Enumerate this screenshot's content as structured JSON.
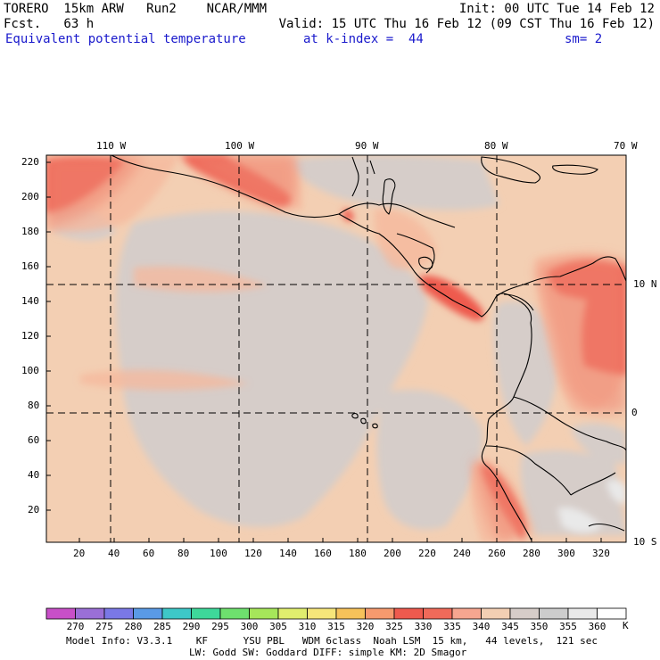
{
  "header": {
    "line1_left": "TORERO  15km ARW   Run2    NCAR/MMM",
    "line1_right": "Init: 00 UTC Tue 14 Feb 12",
    "line2_left": "Fcst.   63 h",
    "line2_right": "Valid: 15 UTC Thu 16 Feb 12 (09 CST Thu 16 Feb 12)",
    "field": "Equivalent potential temperature",
    "level": "at k-index =  44",
    "smooth": "sm= 2"
  },
  "map": {
    "lon_labels": [
      "110 W",
      "100 W",
      "90 W",
      "80 W",
      "70 W"
    ],
    "lat_labels": [
      "10 N",
      "0",
      "10 S"
    ],
    "y_ticks": [
      "220",
      "200",
      "180",
      "160",
      "140",
      "120",
      "100",
      "80",
      "60",
      "40",
      "20"
    ],
    "x_ticks": [
      "20",
      "40",
      "60",
      "80",
      "100",
      "120",
      "140",
      "160",
      "180",
      "200",
      "220",
      "240",
      "260",
      "280",
      "300",
      "320"
    ]
  },
  "colorbar": {
    "labels": [
      "270",
      "275",
      "280",
      "285",
      "290",
      "295",
      "300",
      "305",
      "310",
      "315",
      "320",
      "325",
      "330",
      "335",
      "340",
      "345",
      "350",
      "355",
      "360"
    ],
    "unit": "K",
    "colors": [
      "#c84fc8",
      "#9a6fd6",
      "#7a78e6",
      "#5a9ae6",
      "#3ec8c8",
      "#3ed89a",
      "#6ee06e",
      "#a6e65a",
      "#e0ee6e",
      "#f6e67a",
      "#f6c25a",
      "#f69a6e",
      "#ee5a4e",
      "#f06a5a",
      "#f6a690",
      "#f3cfb3",
      "#d6cdc9",
      "#cdcdcd",
      "#e9e9e9",
      "#ffffff"
    ]
  },
  "footer": {
    "line1": "Model Info: V3.3.1    KF      YSU PBL   WDM 6class  Noah LSM  15 km,   44 levels,  121 sec",
    "line2": "LW: Godd SW: Goddard DIFF: simple KM: 2D Smagor"
  }
}
